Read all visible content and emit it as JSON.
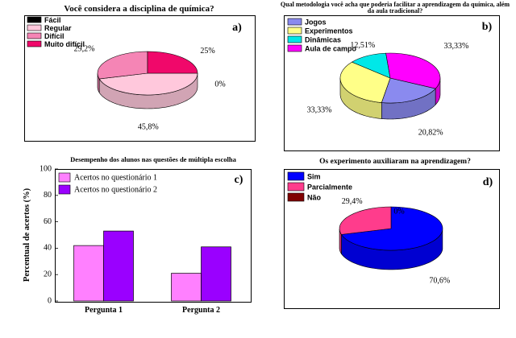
{
  "chart_data": [
    {
      "panel": "a)",
      "type": "pie",
      "title": "Você considera a disciplina de química?",
      "categories": [
        "Fácil",
        "Regular",
        "Difícil",
        "Muito difícil"
      ],
      "values": [
        0,
        45.8,
        29.2,
        25
      ],
      "data_labels": [
        "0%",
        "45,8%",
        "29,2%",
        "25%"
      ],
      "colors": [
        "#000000",
        "#ffc8dc",
        "#f585b5",
        "#f0086a"
      ],
      "legend": "top-left"
    },
    {
      "panel": "b)",
      "type": "pie",
      "title": "Qual metodologia você acha que poderia facilitar a aprendizagem da química, além da aula tradicional?",
      "categories": [
        "Jogos",
        "Experimentos",
        "Dinâmicas",
        "Aula de campo"
      ],
      "values": [
        20.82,
        33.33,
        12.51,
        33.33
      ],
      "data_labels": [
        "20,82%",
        "33,33%",
        "12,51%",
        "33,33%"
      ],
      "colors": [
        "#8a8aef",
        "#ffff88",
        "#00e8e8",
        "#ff00ff"
      ],
      "legend": "top-left"
    },
    {
      "panel": "c)",
      "type": "bar",
      "title": "Desempenho dos alunos nas questões de múltipla escolha",
      "categories": [
        "Pergunta 1",
        "Pergunta 2"
      ],
      "series": [
        {
          "name": "Acertos no questionário 1",
          "values": [
            42,
            21
          ],
          "color": "#ff80ff"
        },
        {
          "name": "Acertos no questionário 2",
          "values": [
            53,
            41
          ],
          "color": "#9a00ff"
        }
      ],
      "ylabel": "Percentual de acertos (%)",
      "ylim": [
        0,
        100
      ],
      "yticks": [
        "0",
        "20",
        "40",
        "60",
        "80",
        "100"
      ],
      "legend": "top-left"
    },
    {
      "panel": "d)",
      "type": "pie",
      "title": "Os experimento auxiliaram na aprendizagem?",
      "categories": [
        "Sim",
        "Parcialmente",
        "Não"
      ],
      "values": [
        70.6,
        29.4,
        0
      ],
      "data_labels": [
        "70,6%",
        "29,4%",
        "0%"
      ],
      "colors": [
        "#0000ff",
        "#ff3c8c",
        "#800000"
      ],
      "legend": "top-left"
    }
  ]
}
